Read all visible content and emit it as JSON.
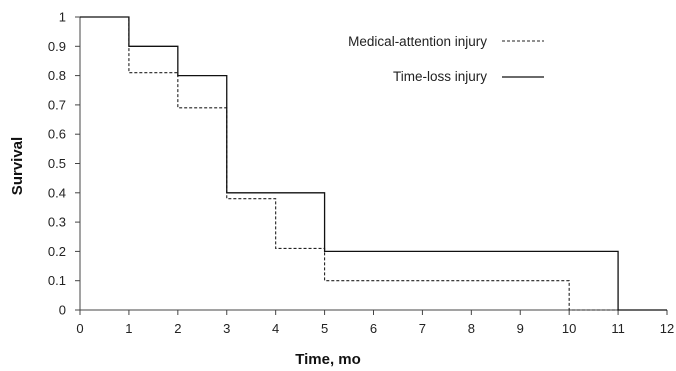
{
  "chart_data": {
    "type": "line",
    "xlabel": "Time, mo",
    "ylabel": "Survival",
    "xlim": [
      0,
      12
    ],
    "ylim": [
      0,
      1
    ],
    "x_ticks": [
      "0",
      "1",
      "2",
      "3",
      "4",
      "5",
      "6",
      "7",
      "8",
      "9",
      "10",
      "11",
      "12"
    ],
    "y_ticks": [
      "0",
      "0.1",
      "0.2",
      "0.3",
      "0.4",
      "0.5",
      "0.6",
      "0.7",
      "0.8",
      "0.9",
      "1"
    ],
    "grid": false,
    "legend_position": "top-right",
    "series": [
      {
        "name": "Medical-attention injury",
        "style": "dashed",
        "color": "#222222",
        "x": [
          0,
          1,
          2,
          3,
          4,
          5,
          10,
          12
        ],
        "y": [
          1,
          0.81,
          0.69,
          0.38,
          0.21,
          0.1,
          0,
          0
        ]
      },
      {
        "name": "Time-loss injury",
        "style": "solid",
        "color": "#111111",
        "x": [
          0,
          1,
          2,
          3,
          5,
          11,
          12
        ],
        "y": [
          1,
          0.9,
          0.8,
          0.4,
          0.2,
          0,
          0
        ]
      }
    ]
  }
}
